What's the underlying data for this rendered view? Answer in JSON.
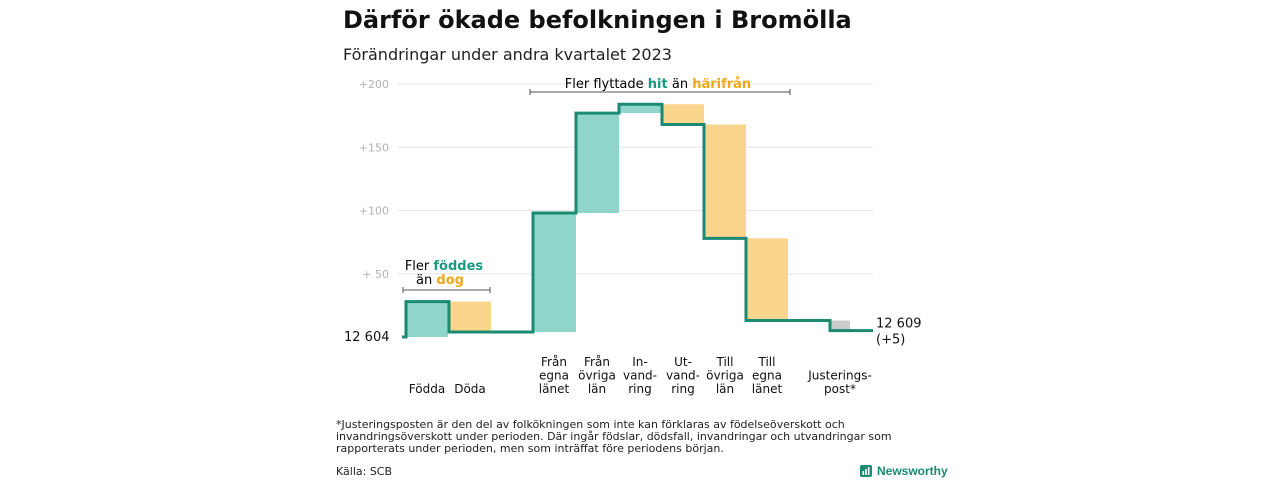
{
  "title": "Därför ökade befolkningen i Bromölla",
  "subtitle": "Förändringar under andra kvartalet 2023",
  "chart_data": {
    "type": "waterfall",
    "start": {
      "label": "12  604",
      "value": 12604
    },
    "end": {
      "label_line1": "12 609",
      "label_line2": "(+5)",
      "value": 12609
    },
    "y_tick_labels": [
      "+200",
      "+150",
      "+100",
      "+  50"
    ],
    "y_tick_values": [
      200,
      150,
      100,
      50
    ],
    "ylim": [
      0,
      200
    ],
    "grid": true,
    "steps": [
      {
        "label_lines": [
          "Födda"
        ],
        "change": 28,
        "kind": "increase"
      },
      {
        "label_lines": [
          "Döda"
        ],
        "change": -24,
        "kind": "decrease"
      },
      {
        "label_lines": [
          "Från",
          "egna",
          "länet"
        ],
        "change": 94,
        "kind": "increase"
      },
      {
        "label_lines": [
          "Från",
          "övriga",
          "län"
        ],
        "change": 79,
        "kind": "increase"
      },
      {
        "label_lines": [
          "In-",
          "vand-",
          "ring"
        ],
        "change": 7,
        "kind": "increase"
      },
      {
        "label_lines": [
          "Ut-",
          "vand-",
          "ring"
        ],
        "change": -16,
        "kind": "decrease"
      },
      {
        "label_lines": [
          "Till",
          "övriga",
          "län"
        ],
        "change": -90,
        "kind": "decrease"
      },
      {
        "label_lines": [
          "Till",
          "egna",
          "länet"
        ],
        "change": -65,
        "kind": "decrease"
      },
      {
        "label_lines": [
          "Justerings-",
          "post*"
        ],
        "change": -8,
        "kind": "adjustment"
      }
    ],
    "annotations": {
      "births": {
        "line1": "Fler ",
        "line1_bold": "föddes",
        "line2": "än ",
        "line2_bold": "dog"
      },
      "migration": {
        "prefix": "Fler flyttade ",
        "hit": "hit",
        "middle": " än ",
        "harifran": "härifrån"
      }
    },
    "colors": {
      "increase": "#8fd5cb",
      "decrease": "#fad58e",
      "adjustment": "#cccccc",
      "line": "#1a8a72",
      "teal_text": "#1a9a82",
      "orange_text": "#f0a818",
      "grid": "#e6e6e6"
    }
  },
  "footnote": "*Justeringsposten är den del av folkökningen som inte kan förklaras av födelseöverskott och invandringsöverskott under perioden. Där ingår födslar, dödsfall, invandringar och utvandringar som rapporterats under perioden, men som inträffat före periodens början.",
  "source": "Källa: SCB",
  "brand": "Newsworthy"
}
